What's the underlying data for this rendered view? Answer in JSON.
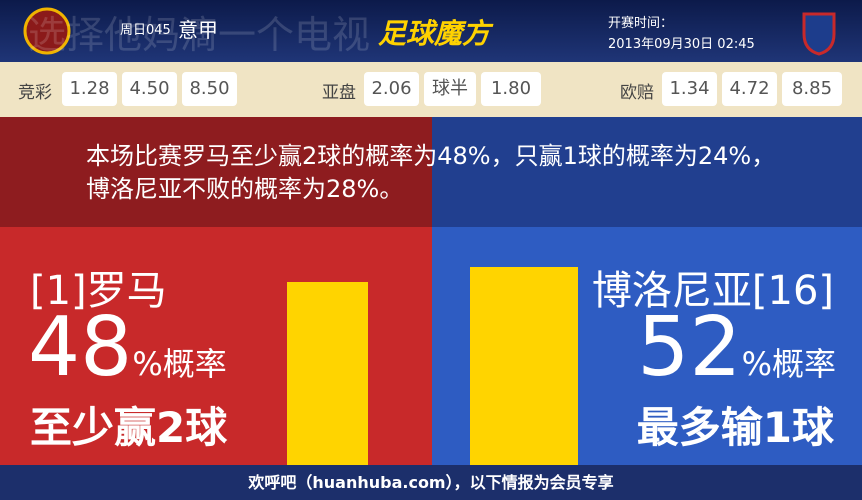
{
  "header": {
    "watermark": "选择他妈滴一个电视",
    "match_code": "周日045",
    "league": "意甲",
    "brand": "足球魔方",
    "kickoff_label": "开赛时间：",
    "kickoff": "2013年09月30日 02:45"
  },
  "odds": {
    "jingcai": {
      "label": "竞彩",
      "values": [
        "1.28",
        "4.50",
        "8.50"
      ]
    },
    "yapan": {
      "label": "亚盘",
      "home": "2.06",
      "handicap": "球半",
      "away": "1.80"
    },
    "oupei": {
      "label": "欧赔",
      "values": [
        "1.34",
        "4.72",
        "8.85"
      ]
    }
  },
  "summary": "本场比赛罗马至少赢2球的概率为48%，只赢1球的概率为24%，博洛尼亚不败的概率为28%。",
  "home": {
    "team": "[1]罗马",
    "percent": 48,
    "unit": "%概率",
    "outcome": "至少赢2球"
  },
  "away": {
    "team": "博洛尼亚[16]",
    "percent": 52,
    "unit": "%概率",
    "outcome": "最多输1球"
  },
  "footer": "欢呼吧（huanhuba.com），以下情报为会员专享"
}
